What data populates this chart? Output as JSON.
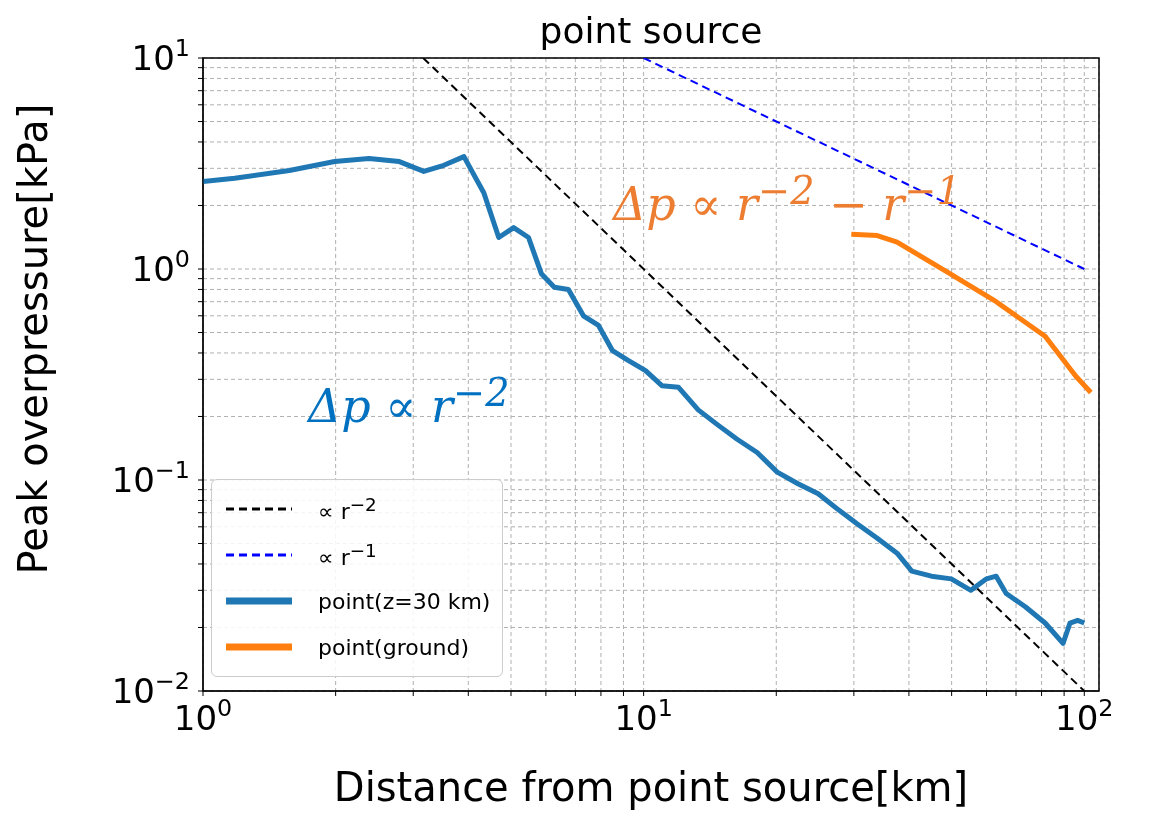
{
  "chart_data": {
    "type": "line",
    "title": "point source",
    "xlabel": "Distance from point source[km]",
    "ylabel": "Peak overpressure[kPa]",
    "log": "xy",
    "grid": true,
    "legend": "bottom left",
    "marker": "none",
    "xlim": [
      1,
      108
    ],
    "ylim": [
      0.01,
      10
    ],
    "xticks": [
      {
        "value": 1,
        "label": "10$^{0}$"
      },
      {
        "value": 2,
        "label": null
      },
      {
        "value": 3,
        "label": null
      },
      {
        "value": 4,
        "label": null
      },
      {
        "value": 5,
        "label": null
      },
      {
        "value": 6,
        "label": null
      },
      {
        "value": 7,
        "label": null
      },
      {
        "value": 8,
        "label": null
      },
      {
        "value": 9,
        "label": null
      },
      {
        "value": 10,
        "label": "10$^{1}$"
      },
      {
        "value": 20,
        "label": null
      },
      {
        "value": 30,
        "label": null
      },
      {
        "value": 40,
        "label": null
      },
      {
        "value": 50,
        "label": null
      },
      {
        "value": 60,
        "label": null
      },
      {
        "value": 70,
        "label": null
      },
      {
        "value": 80,
        "label": null
      },
      {
        "value": 90,
        "label": null
      },
      {
        "value": 100,
        "label": "10$^{2}$"
      }
    ],
    "yticks": [
      {
        "value": 0.01,
        "label": "10$^{−2}$"
      },
      {
        "value": 0.02,
        "label": null
      },
      {
        "value": 0.03,
        "label": null
      },
      {
        "value": 0.04,
        "label": null
      },
      {
        "value": 0.05,
        "label": null
      },
      {
        "value": 0.06,
        "label": null
      },
      {
        "value": 0.07,
        "label": null
      },
      {
        "value": 0.08,
        "label": null
      },
      {
        "value": 0.09,
        "label": null
      },
      {
        "value": 0.1,
        "label": "10$^{−1}$"
      },
      {
        "value": 0.2,
        "label": null
      },
      {
        "value": 0.3,
        "label": null
      },
      {
        "value": 0.4,
        "label": null
      },
      {
        "value": 0.5,
        "label": null
      },
      {
        "value": 0.6,
        "label": null
      },
      {
        "value": 0.7,
        "label": null
      },
      {
        "value": 0.8,
        "label": null
      },
      {
        "value": 0.9,
        "label": null
      },
      {
        "value": 1,
        "label": "10$^{0}$"
      },
      {
        "value": 2,
        "label": null
      },
      {
        "value": 3,
        "label": null
      },
      {
        "value": 4,
        "label": null
      },
      {
        "value": 5,
        "label": null
      },
      {
        "value": 6,
        "label": null
      },
      {
        "value": 7,
        "label": null
      },
      {
        "value": 8,
        "label": null
      },
      {
        "value": 9,
        "label": null
      },
      {
        "value": 10,
        "label": "10$^{1}$"
      }
    ],
    "series": [
      {
        "name": "∝ r$^{−2}$",
        "color": "#000000",
        "line_style": "dashed",
        "x": [
          3.16,
          100
        ],
        "values": [
          10,
          0.01
        ]
      },
      {
        "name": "∝ r$^{−1}$",
        "color": "#0000ff",
        "line_style": "dashed",
        "x": [
          10,
          100
        ],
        "values": [
          10,
          1
        ]
      },
      {
        "name": "point(z=30 km)",
        "color": "#1f77b4",
        "line_style": "solid",
        "x": [
          1,
          1.18,
          1.57,
          1.99,
          2.38,
          2.79,
          3.17,
          3.52,
          3.91,
          4.34,
          4.69,
          5.07,
          5.48,
          5.86,
          6.27,
          6.75,
          7.3,
          7.9,
          8.5,
          9.2,
          10.1,
          11,
          12,
          13.3,
          14.7,
          16.3,
          18.1,
          20.1,
          22.4,
          24.9,
          27.5,
          30.5,
          33.9,
          37.6,
          40.6,
          45,
          49.9,
          55.3,
          60,
          63.1,
          66.5,
          73.6,
          81.5,
          89.5,
          92.8,
          96.6,
          100
        ],
        "values": [
          2.6,
          2.69,
          2.93,
          3.23,
          3.34,
          3.23,
          2.9,
          3.1,
          3.41,
          2.29,
          1.41,
          1.57,
          1.41,
          0.95,
          0.82,
          0.8,
          0.6,
          0.54,
          0.41,
          0.37,
          0.33,
          0.28,
          0.275,
          0.215,
          0.183,
          0.156,
          0.135,
          0.109,
          0.096,
          0.086,
          0.073,
          0.062,
          0.053,
          0.045,
          0.037,
          0.035,
          0.034,
          0.03,
          0.034,
          0.035,
          0.029,
          0.025,
          0.021,
          0.0168,
          0.021,
          0.0216,
          0.021
        ]
      },
      {
        "name": "point(ground)",
        "color": "#ff7f0e",
        "line_style": "solid",
        "x": [
          29.6,
          33.9,
          37.6,
          48.8,
          63.1,
          81.5,
          95.7,
          103.5
        ],
        "values": [
          1.46,
          1.44,
          1.34,
          0.97,
          0.7,
          0.48,
          0.31,
          0.26
        ]
      }
    ],
    "annotations": [
      "Δp ∝ r$^{−2}$",
      "Δp ∝ r$^{−2}$ − r$^{−1}$"
    ]
  }
}
